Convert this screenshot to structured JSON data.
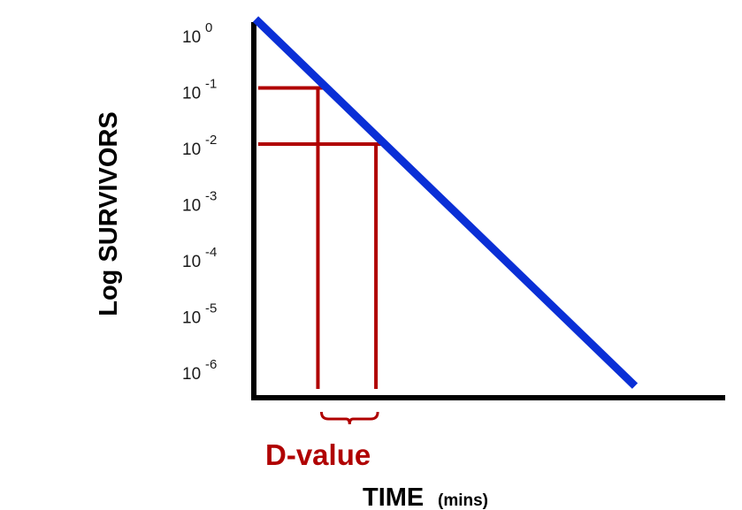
{
  "chart_data": {
    "type": "line",
    "title": "",
    "xlabel": "TIME",
    "xlabel_unit": "(mins)",
    "ylabel": "Log SURVIVORS",
    "y_scale": "log",
    "y_ticks": [
      {
        "base": "10",
        "exp": "0"
      },
      {
        "base": "10",
        "exp": "-1"
      },
      {
        "base": "10",
        "exp": "-2"
      },
      {
        "base": "10",
        "exp": "-3"
      },
      {
        "base": "10",
        "exp": "-4"
      },
      {
        "base": "10",
        "exp": "-5"
      },
      {
        "base": "10",
        "exp": "-6"
      }
    ],
    "grid": false,
    "series": [
      {
        "color": "#0a2fd6",
        "y_start_exp": 0.1,
        "y_end_exp": -6.2
      }
    ],
    "annotation": {
      "label": "D-value",
      "color": "#b00000",
      "levels_exp": [
        -1,
        -2
      ]
    }
  }
}
